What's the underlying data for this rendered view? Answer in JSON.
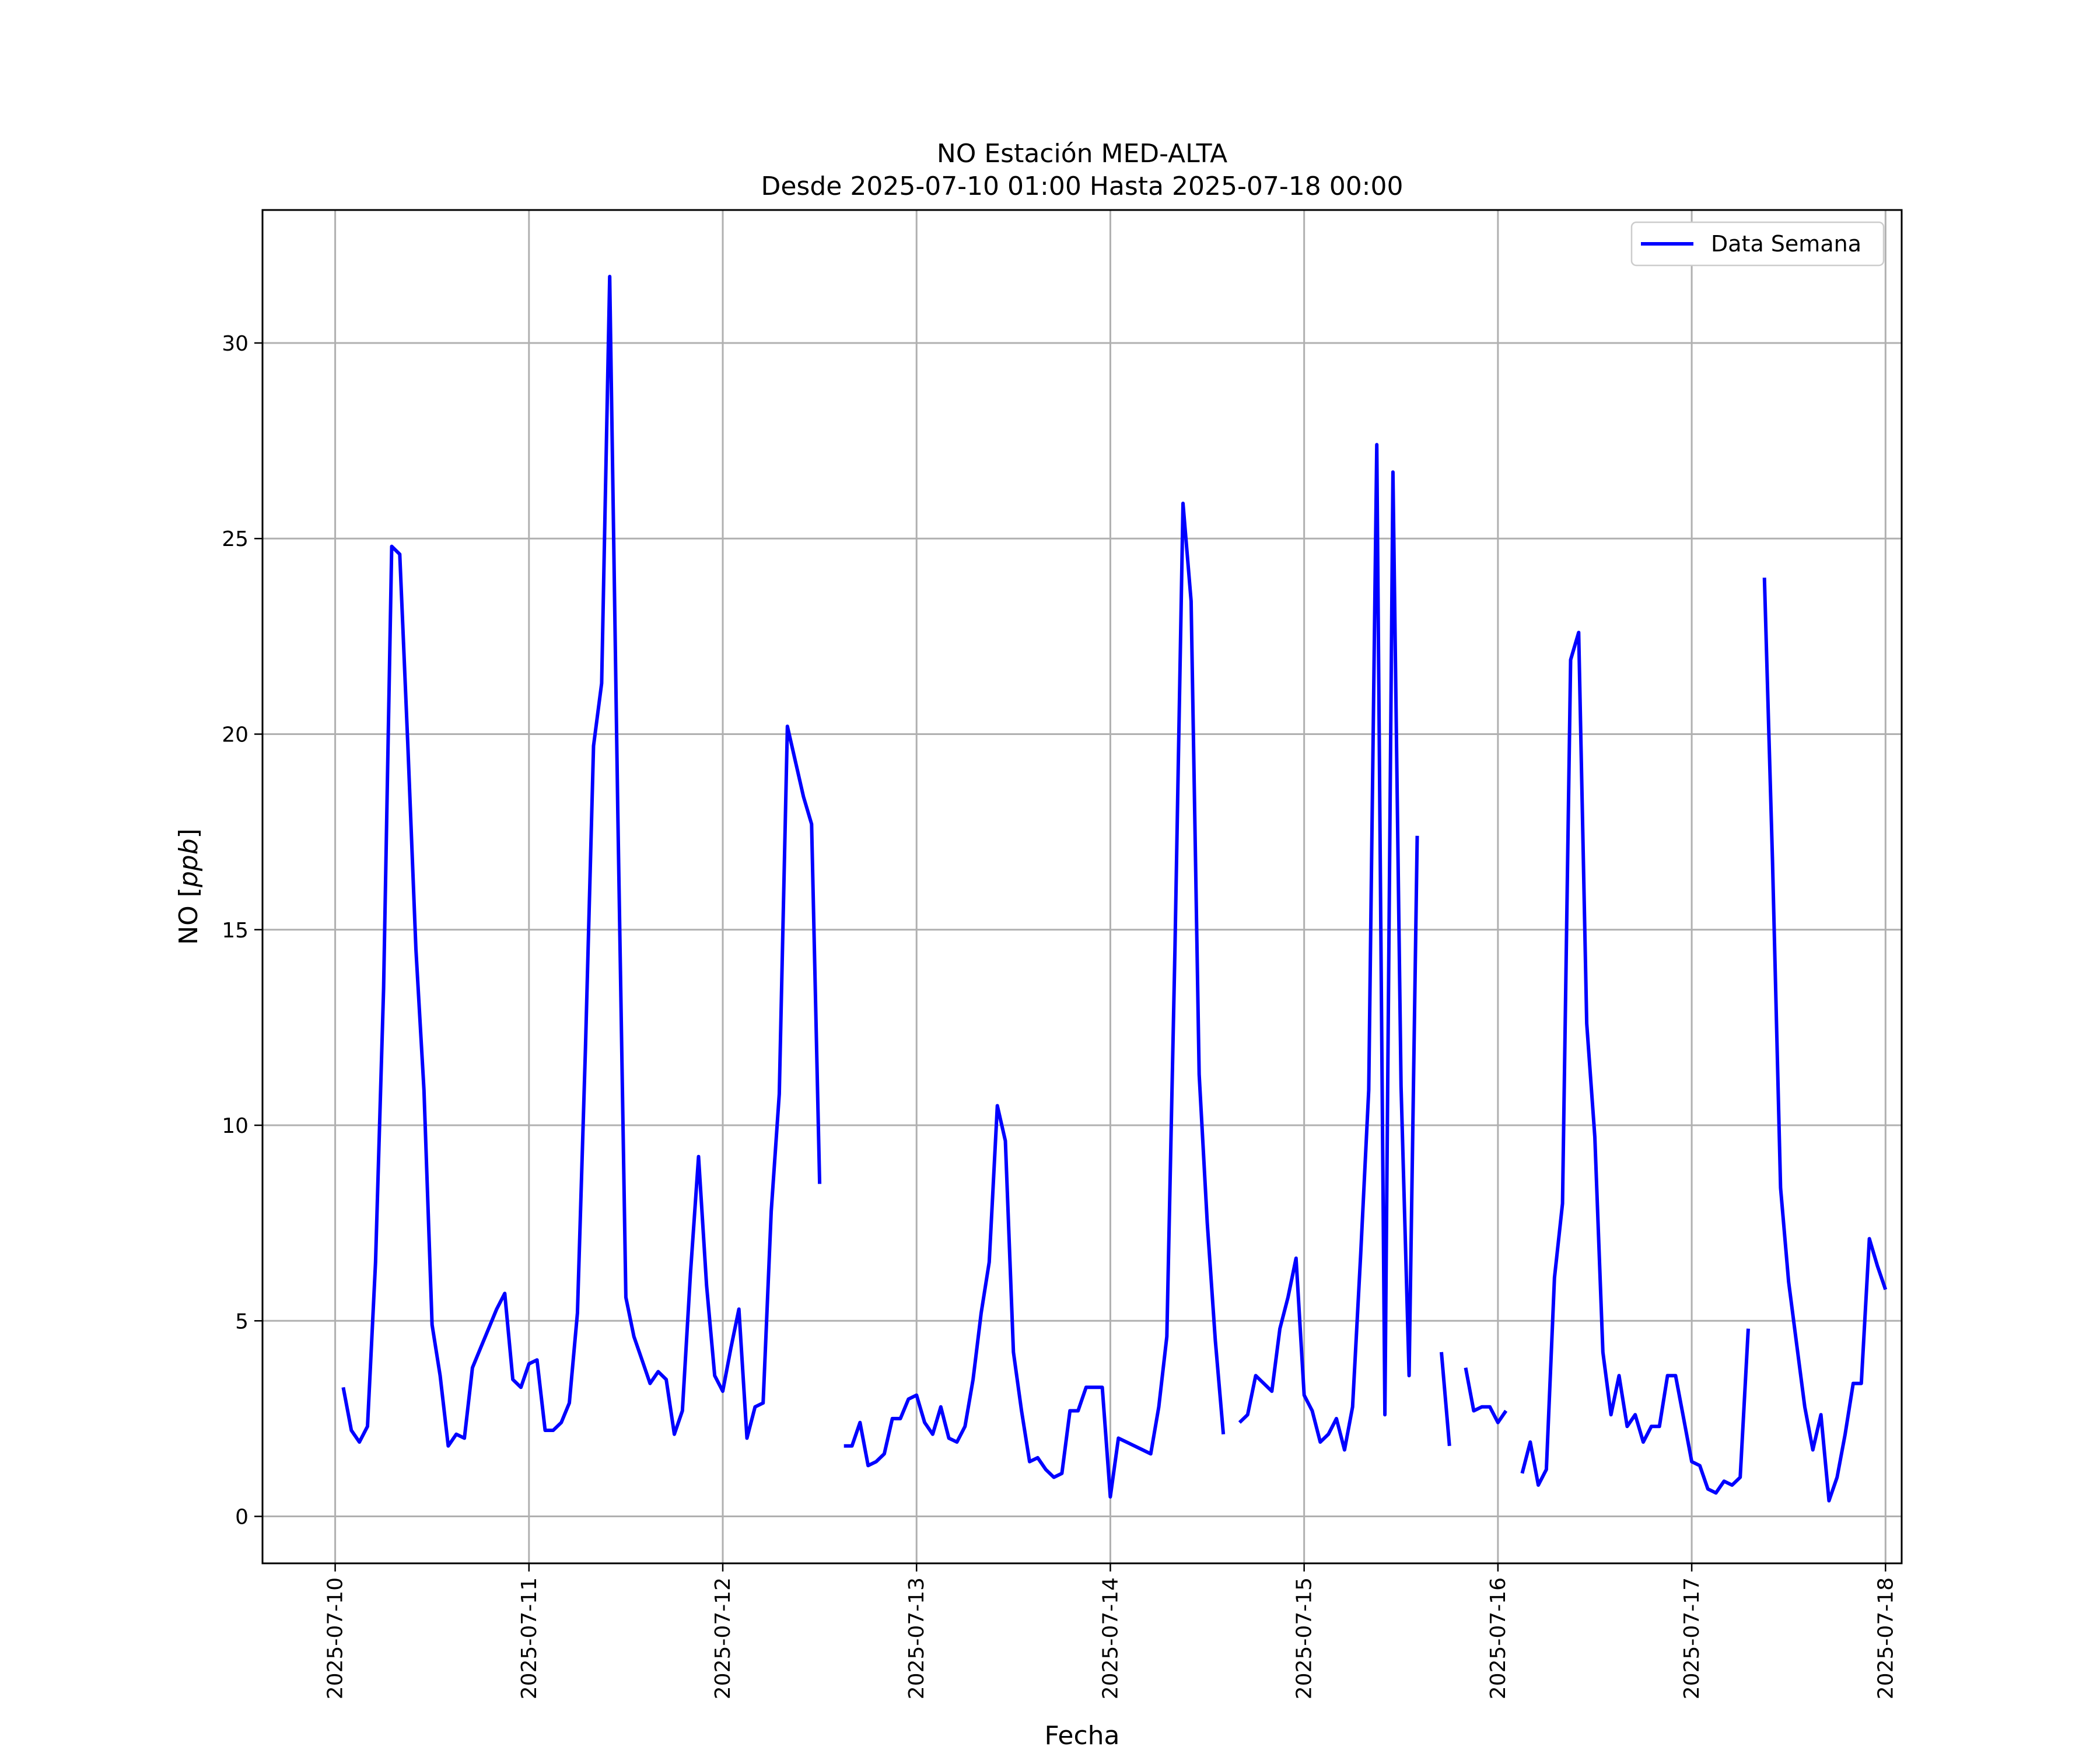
{
  "chart_data": {
    "type": "line",
    "title": "NO Estación MED-ALTA",
    "subtitle": "Desde 2025-07-10 01:00 Hasta 2025-07-18 00:00",
    "xlabel": "Fecha",
    "ylabel": "NO [ppb]",
    "ylabel_main": "NO [",
    "ylabel_unit": "ppb",
    "ylabel_end": "]",
    "xlim": [
      "2025-07-09 15:00",
      "2025-07-18 02:00"
    ],
    "ylim": [
      -1.2,
      33.4
    ],
    "x_ticks": [
      "2025-07-10",
      "2025-07-11",
      "2025-07-12",
      "2025-07-13",
      "2025-07-14",
      "2025-07-15",
      "2025-07-16",
      "2025-07-17",
      "2025-07-18"
    ],
    "y_ticks": [
      0,
      5,
      10,
      15,
      20,
      25,
      30
    ],
    "y_tick_labels": [
      "0",
      "5",
      "10",
      "15",
      "20",
      "25",
      "30"
    ],
    "grid": true,
    "legend_position": "top-right",
    "series": [
      {
        "name": "Data Semana",
        "color": "#0000ff",
        "start": "2025-07-10 01:00",
        "step_hours": 1,
        "values": [
          3.3,
          2.2,
          1.9,
          2.3,
          6.5,
          13.5,
          24.8,
          24.6,
          19.7,
          14.5,
          10.9,
          4.9,
          3.6,
          1.8,
          2.1,
          2.0,
          3.8,
          4.3,
          4.8,
          5.3,
          5.7,
          3.5,
          3.3,
          3.9,
          4.0,
          2.2,
          2.2,
          2.4,
          2.9,
          5.2,
          12.0,
          19.7,
          21.3,
          31.7,
          18.0,
          5.6,
          4.6,
          4.0,
          3.4,
          3.7,
          3.5,
          2.1,
          2.7,
          6.2,
          9.2,
          5.9,
          3.6,
          3.2,
          4.3,
          5.3,
          2.0,
          2.8,
          2.9,
          7.8,
          10.8,
          20.2,
          19.3,
          18.4,
          17.7,
          8.5,
          null,
          null,
          1.8,
          1.8,
          2.4,
          1.3,
          1.4,
          1.6,
          2.5,
          2.5,
          3.0,
          3.1,
          2.4,
          2.1,
          2.8,
          2.0,
          1.9,
          2.3,
          3.5,
          5.2,
          6.5,
          10.5,
          9.6,
          4.2,
          2.7,
          1.4,
          1.5,
          1.2,
          1.0,
          1.1,
          2.7,
          2.7,
          3.3,
          3.3,
          3.3,
          0.5,
          2.0,
          1.9,
          1.8,
          1.7,
          1.6,
          2.8,
          4.6,
          14.5,
          25.9,
          23.4,
          11.3,
          7.5,
          4.5,
          2.1,
          null,
          2.4,
          2.6,
          3.6,
          3.4,
          3.2,
          4.8,
          5.6,
          6.6,
          3.1,
          2.7,
          1.9,
          2.1,
          2.5,
          1.7,
          2.8,
          6.7,
          10.9,
          27.4,
          2.6,
          26.7,
          11.0,
          3.6,
          17.4,
          null,
          null,
          4.2,
          1.8,
          null,
          3.8,
          2.7,
          2.8,
          2.8,
          2.4,
          2.7,
          null,
          1.1,
          1.9,
          0.8,
          1.2,
          6.1,
          8.0,
          21.9,
          22.6,
          12.6,
          9.7,
          4.2,
          2.6,
          3.6,
          2.3,
          2.6,
          1.9,
          2.3,
          2.3,
          3.6,
          3.6,
          2.5,
          1.4,
          1.3,
          0.7,
          0.6,
          0.9,
          0.8,
          1.0,
          4.8,
          null,
          24.0,
          16.8,
          8.4,
          6.0,
          4.4,
          2.8,
          1.7,
          2.6,
          0.4,
          1.0,
          2.1,
          3.4,
          3.4,
          7.1,
          6.4,
          5.8
        ]
      }
    ]
  }
}
